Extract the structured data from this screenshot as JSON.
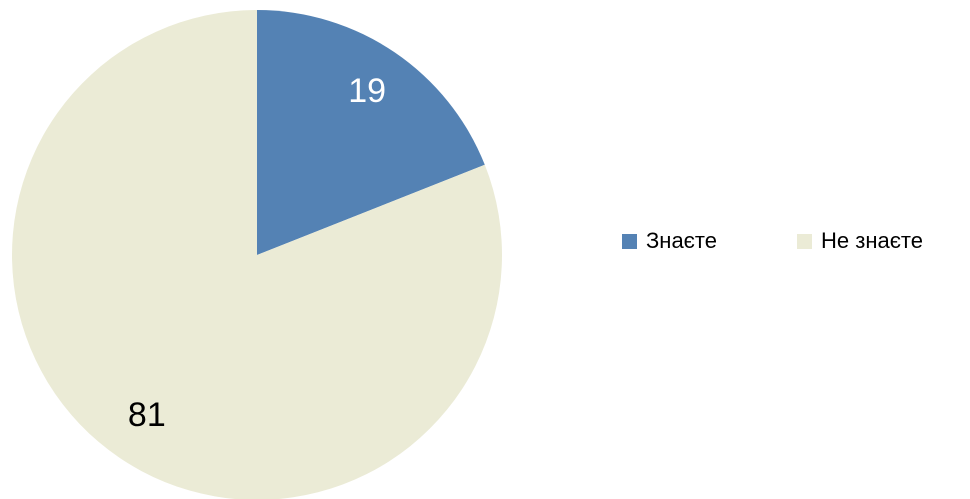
{
  "chart_data": {
    "type": "pie",
    "categories": [
      "Знаєте",
      "Не знаєте"
    ],
    "values": [
      19,
      81
    ],
    "colors": [
      "#5482b4",
      "#ebebd6"
    ],
    "legend": "right"
  }
}
